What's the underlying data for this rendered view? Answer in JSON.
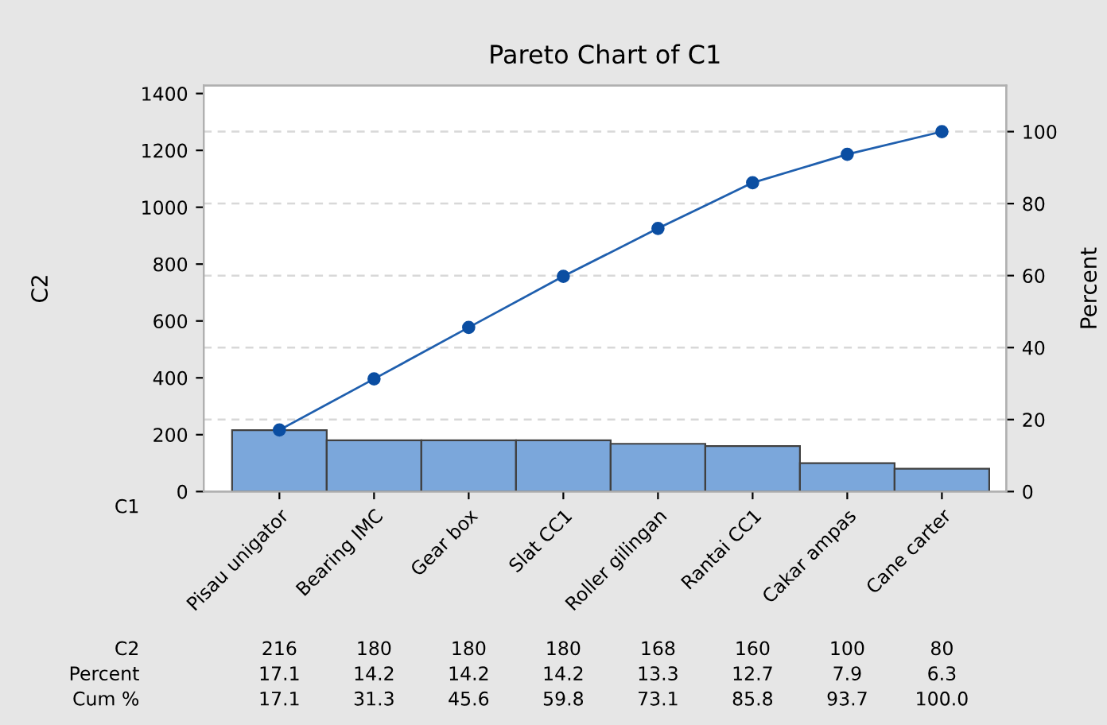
{
  "chart_data": {
    "type": "bar",
    "title": "Pareto Chart of C1",
    "xlabel": "C1",
    "ylabel": "C2",
    "y2label": "Percent",
    "categories": [
      "Pisau unigator",
      "Bearing IMC",
      "Gear box",
      "Slat CC1",
      "Roller gilingan",
      "Rantai CC1",
      "Cakar ampas",
      "Cane carter"
    ],
    "series": [
      {
        "color": "#7ba7db",
        "values": [
          216,
          180,
          180,
          180,
          168,
          160,
          100,
          80
        ]
      },
      {
        "type": "line",
        "axis": "y2",
        "color": "#1f5fae",
        "values": [
          17.1,
          31.3,
          45.6,
          59.8,
          73.1,
          85.8,
          93.7,
          100.0
        ],
        "value_labels": [
          "17.1",
          "31.3",
          "45.6",
          "59.8",
          "73.1",
          "85.8",
          "93.7",
          "100.0"
        ]
      }
    ],
    "annotations": [
      "C2",
      "Percent",
      "Cum %",
      "17.1",
      "14.2",
      "14.2",
      "14.2",
      "13.3",
      "12.7",
      "7.9",
      "6.3"
    ],
    "ylim": [
      0,
      1428
    ],
    "yticks": [
      0,
      200,
      400,
      600,
      800,
      1000,
      1200,
      1400
    ],
    "y2lim": [
      0,
      112.8
    ],
    "y2ticks": [
      0,
      20,
      40,
      60,
      80,
      100
    ],
    "grid": "y2",
    "legend": false,
    "marker": "circle",
    "line_style": "solid",
    "data_labels": true
  }
}
